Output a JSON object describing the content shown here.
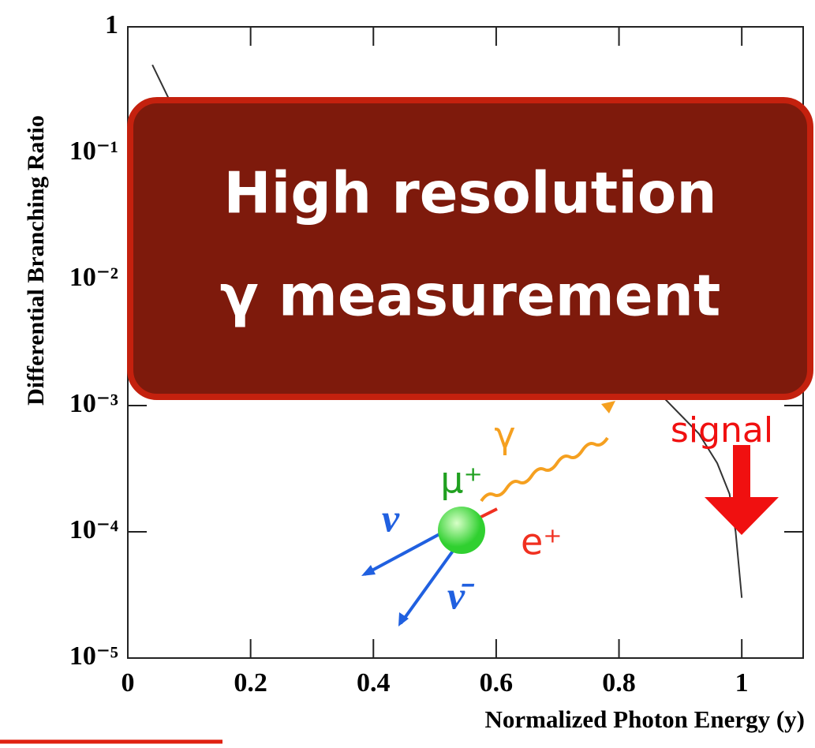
{
  "chart_data": {
    "type": "line",
    "x_label": "Normalized Photon Energy (y)",
    "y_label": "Differential Branching Ratio",
    "x": [
      0.04,
      0.07,
      0.1,
      0.3,
      0.5,
      0.7,
      0.85,
      0.93,
      0.96,
      0.98,
      0.99,
      1.0
    ],
    "series": [
      {
        "color": "#333333",
        "values": [
          0.5,
          0.25,
          0.15,
          0.03,
          0.01,
          0.004,
          0.0015,
          0.0006,
          0.00035,
          0.0002,
          0.0001,
          3e-05
        ]
      }
    ],
    "xlim": [
      0,
      1.1
    ],
    "xticks": [
      0,
      0.2,
      0.4,
      0.6,
      0.8,
      1
    ],
    "ylim": [
      1e-05,
      1
    ],
    "yticks": [
      {
        "value": 1e-05,
        "label": "10⁻⁵"
      },
      {
        "value": 0.0001,
        "label": "10⁻⁴"
      },
      {
        "value": 0.001,
        "label": "10⁻³"
      },
      {
        "value": 0.01,
        "label": "10⁻²"
      },
      {
        "value": 0.1,
        "label": "10⁻¹"
      },
      1
    ],
    "log_y": true,
    "banner": [
      "High resolution",
      "γ measurement"
    ],
    "annotation": "signal",
    "diagram_labels": {
      "muon": "μ⁺",
      "photon": "γ",
      "positron": "e⁺",
      "neutrino": "ν",
      "antineutrino": "ν̄"
    }
  }
}
